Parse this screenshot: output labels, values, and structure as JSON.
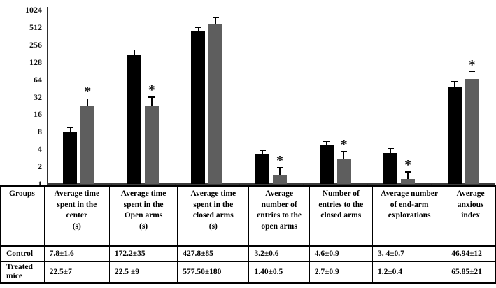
{
  "chart_data": {
    "type": "bar",
    "title": "",
    "yscale": "log2",
    "ylim": [
      1,
      1024
    ],
    "yticks": [
      1,
      2,
      4,
      8,
      16,
      32,
      64,
      128,
      256,
      512,
      1024
    ],
    "grid": false,
    "legend_position": "none",
    "categories": [
      "Average time spent in the center (s)",
      "Average time spent in the Open arms (s)",
      "Average time spent in the closed arms (s)",
      "Average number of entries to the open arms",
      "Number of entries to the closed arms",
      "Average number of end-arm explorations",
      "Average anxious index"
    ],
    "series": [
      {
        "name": "Control",
        "color": "#000000",
        "values": [
          7.8,
          172.2,
          427.8,
          3.2,
          4.6,
          3.4,
          46.94
        ],
        "errors": [
          1.6,
          35,
          85,
          0.6,
          0.9,
          0.7,
          12
        ],
        "significant": [
          false,
          false,
          false,
          false,
          false,
          false,
          false
        ]
      },
      {
        "name": "Treated mice",
        "color": "#5e5e5e",
        "values": [
          22.5,
          22.5,
          577.5,
          1.4,
          2.7,
          1.2,
          65.85
        ],
        "errors": [
          7,
          9,
          180,
          0.5,
          0.9,
          0.4,
          21
        ],
        "significant": [
          true,
          true,
          false,
          true,
          true,
          true,
          true
        ]
      }
    ],
    "significance_marker": "*"
  },
  "table": {
    "corner_header": "Groups",
    "column_headers": [
      "Average  time\nspent in the\ncenter\n(s)",
      "Average time\nspent in the\nOpen arms\n(s)",
      "Average time\nspent in the\nclosed  arms\n(s)",
      "Average\nnumber of\nentries to the\nopen arms",
      "Number of\nentries to the\nclosed arms",
      "Average number\nof end-arm\nexplorations",
      "Average\nanxious\nindex"
    ],
    "rows": [
      {
        "group": "Control",
        "values": [
          "7.8±1.6",
          "172.2±35",
          "427.8±85",
          "3.2±0.6",
          "4.6±0.9",
          "3. 4±0.7",
          "46.94±12"
        ]
      },
      {
        "group": "Treated\nmice",
        "values": [
          "22.5±7",
          "22.5 ±9",
          "577.50±180",
          "1.40±0.5",
          "2.7±0.9",
          "1.2±0.4",
          "65.85±21"
        ]
      }
    ]
  }
}
